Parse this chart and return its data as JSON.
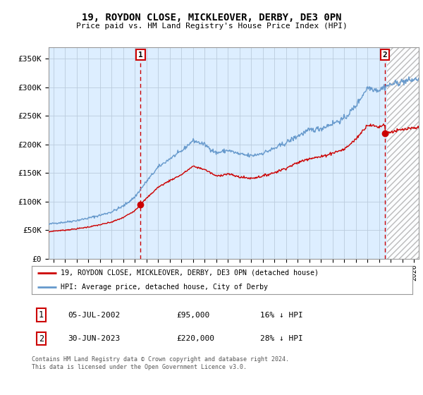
{
  "title": "19, ROYDON CLOSE, MICKLEOVER, DERBY, DE3 0PN",
  "subtitle": "Price paid vs. HM Land Registry's House Price Index (HPI)",
  "ylabel_ticks": [
    "£0",
    "£50K",
    "£100K",
    "£150K",
    "£200K",
    "£250K",
    "£300K",
    "£350K"
  ],
  "ytick_values": [
    0,
    50000,
    100000,
    150000,
    200000,
    250000,
    300000,
    350000
  ],
  "ylim": [
    0,
    370000
  ],
  "xlim_start": 1994.6,
  "xlim_end": 2026.4,
  "hpi_color": "#6699cc",
  "price_color": "#cc0000",
  "bg_plot_color": "#ddeeff",
  "marker1_date": 2002.5,
  "marker1_price": 95000,
  "marker1_label": "1",
  "marker2_date": 2023.5,
  "marker2_price": 220000,
  "marker2_label": "2",
  "hatch_start": 2023.7,
  "legend_line1": "19, ROYDON CLOSE, MICKLEOVER, DERBY, DE3 0PN (detached house)",
  "legend_line2": "HPI: Average price, detached house, City of Derby",
  "table_row1": [
    "1",
    "05-JUL-2002",
    "£95,000",
    "16% ↓ HPI"
  ],
  "table_row2": [
    "2",
    "30-JUN-2023",
    "£220,000",
    "28% ↓ HPI"
  ],
  "footnote": "Contains HM Land Registry data © Crown copyright and database right 2024.\nThis data is licensed under the Open Government Licence v3.0.",
  "background_color": "#ffffff",
  "grid_color": "#bbccdd"
}
